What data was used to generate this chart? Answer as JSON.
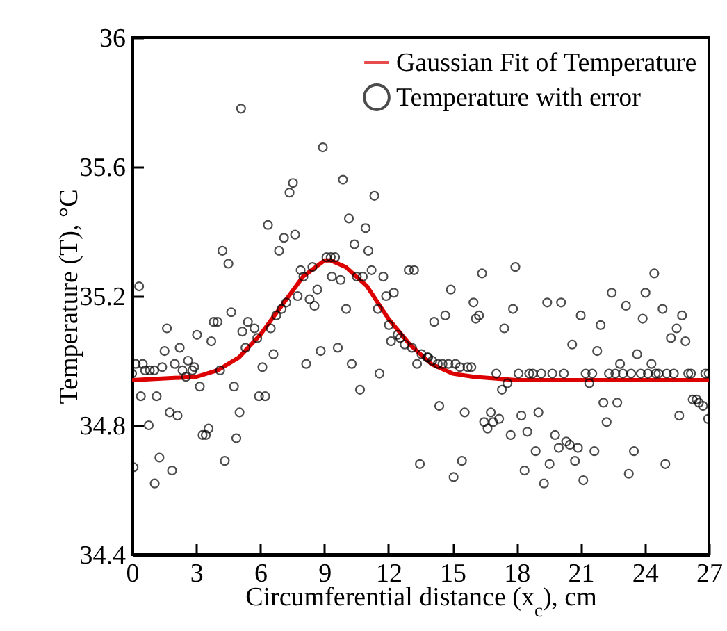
{
  "chart_data": {
    "type": "scatter",
    "xlabel": "Circumferential distance (x$_{c}$), cm",
    "ylabel": "Temperature (T), °C",
    "xlim": [
      0,
      27
    ],
    "xticks": [
      0,
      3,
      6,
      9,
      12,
      15,
      18,
      21,
      24,
      27
    ],
    "ylim": [
      34.4,
      36
    ],
    "yticks": [
      34.4,
      34.8,
      35.2,
      35.6,
      {
        "value": 36,
        "label": "36"
      }
    ],
    "grid": false,
    "legend": "top right",
    "series": [
      {
        "name": "Gaussian Fit of Temperature",
        "type": "line",
        "color": "#dd0000",
        "x": [
          0,
          3,
          4,
          5,
          6,
          7,
          8,
          9,
          9.3,
          10,
          11,
          12,
          13,
          14,
          15,
          16,
          18,
          27
        ],
        "values": [
          34.94,
          34.95,
          34.97,
          35.01,
          35.08,
          35.17,
          35.26,
          35.31,
          35.31,
          35.29,
          35.23,
          35.13,
          35.05,
          34.99,
          34.96,
          34.95,
          34.94,
          34.94
        ]
      },
      {
        "name": "Temperature with error",
        "type": "scatter",
        "marker": "circle",
        "color": "#000000",
        "x": [
          0,
          0.07,
          0.17,
          0.33,
          0.41,
          0.5,
          0.61,
          0.78,
          0.83,
          1.04,
          1.06,
          1.15,
          1.28,
          1.41,
          1.52,
          1.63,
          1.76,
          1.87,
          2.0,
          2.13,
          2.23,
          2.36,
          2.52,
          2.62,
          2.82,
          2.91,
          3.04,
          3.17,
          3.3,
          3.45,
          3.58,
          3.71,
          3.82,
          4.0,
          4.12,
          4.23,
          4.34,
          4.51,
          4.64,
          4.77,
          4.88,
          5.03,
          5.1,
          5.16,
          5.31,
          5.42,
          5.73,
          5.86,
          5.94,
          6.1,
          6.23,
          6.36,
          6.49,
          6.62,
          6.75,
          6.88,
          7.0,
          7.11,
          7.22,
          7.37,
          7.53,
          7.63,
          7.75,
          7.89,
          8.02,
          8.15,
          8.31,
          8.44,
          8.54,
          8.67,
          8.83,
          8.93,
          9.1,
          9.3,
          9.35,
          9.5,
          9.63,
          9.76,
          9.87,
          10.02,
          10.15,
          10.28,
          10.41,
          10.52,
          10.67,
          10.8,
          10.93,
          11.06,
          11.21,
          11.34,
          11.5,
          11.58,
          11.76,
          11.89,
          12.02,
          12.12,
          12.25,
          12.43,
          12.55,
          12.76,
          12.95,
          13.1,
          13.2,
          13.34,
          13.47,
          13.55,
          13.81,
          13.86,
          14.05,
          14.14,
          14.31,
          14.38,
          14.53,
          14.66,
          14.81,
          14.92,
          15.05,
          15.14,
          15.35,
          15.44,
          15.57,
          15.7,
          15.88,
          15.98,
          16.09,
          16.24,
          16.38,
          16.48,
          16.64,
          16.79,
          16.9,
          17.05,
          17.18,
          17.31,
          17.42,
          17.57,
          17.72,
          17.83,
          17.94,
          18.09,
          18.22,
          18.37,
          18.5,
          18.59,
          18.76,
          18.89,
          19.02,
          19.15,
          19.28,
          19.43,
          19.54,
          19.67,
          19.8,
          19.97,
          20.08,
          20.21,
          20.32,
          20.49,
          20.6,
          20.73,
          20.87,
          21.0,
          21.12,
          21.23,
          21.4,
          21.54,
          21.64,
          21.77,
          21.93,
          22.06,
          22.21,
          22.32,
          22.45,
          22.62,
          22.71,
          22.84,
          22.97,
          23.12,
          23.25,
          23.36,
          23.49,
          23.64,
          23.81,
          23.9,
          24.03,
          24.14,
          24.31,
          24.44,
          24.51,
          24.64,
          24.83,
          24.96,
          25.03,
          25.22,
          25.36,
          25.49,
          25.61,
          25.74,
          25.9,
          26.03,
          26.16,
          26.24,
          26.42,
          26.53,
          26.72,
          26.83,
          26.96,
          26.99
        ],
        "values": [
          34.96,
          34.67,
          34.99,
          35.23,
          34.89,
          34.99,
          34.97,
          34.8,
          34.97,
          34.97,
          34.62,
          34.89,
          34.7,
          34.98,
          35.03,
          35.1,
          34.84,
          34.66,
          34.99,
          34.83,
          35.04,
          34.97,
          34.95,
          35.0,
          34.97,
          34.98,
          35.08,
          34.92,
          34.77,
          34.77,
          34.79,
          35.06,
          35.12,
          35.12,
          34.97,
          35.34,
          34.69,
          35.3,
          35.15,
          34.92,
          34.76,
          34.84,
          35.78,
          35.09,
          35.04,
          35.12,
          35.1,
          35.07,
          34.89,
          34.98,
          34.89,
          35.42,
          35.1,
          35.02,
          35.14,
          35.34,
          35.16,
          35.38,
          35.18,
          35.52,
          35.55,
          35.39,
          35.2,
          35.28,
          35.26,
          34.99,
          35.19,
          35.29,
          35.17,
          35.22,
          35.03,
          35.66,
          35.32,
          35.32,
          35.26,
          35.32,
          35.04,
          35.25,
          35.56,
          35.16,
          35.44,
          34.99,
          35.36,
          35.26,
          34.91,
          35.26,
          35.41,
          35.34,
          35.28,
          35.51,
          35.16,
          34.96,
          35.26,
          35.2,
          35.11,
          35.06,
          35.21,
          35.08,
          35.07,
          35.05,
          35.28,
          35.04,
          35.28,
          34.99,
          34.68,
          35.02,
          35.01,
          35.01,
          35.0,
          35.12,
          34.99,
          34.86,
          34.99,
          35.14,
          34.99,
          35.22,
          34.64,
          34.99,
          34.98,
          34.69,
          34.84,
          34.98,
          34.98,
          35.18,
          35.13,
          35.14,
          35.27,
          34.81,
          34.79,
          34.84,
          34.81,
          34.96,
          34.82,
          34.91,
          35.1,
          34.93,
          34.77,
          35.16,
          35.29,
          34.96,
          34.83,
          34.66,
          34.78,
          34.96,
          34.96,
          34.72,
          34.84,
          34.96,
          34.62,
          35.18,
          34.68,
          34.96,
          34.77,
          34.73,
          35.18,
          34.96,
          34.75,
          34.74,
          35.05,
          34.69,
          34.73,
          35.14,
          34.63,
          34.96,
          34.93,
          34.96,
          34.72,
          35.03,
          35.11,
          34.87,
          34.81,
          34.96,
          35.21,
          34.96,
          34.87,
          34.99,
          34.96,
          35.17,
          34.65,
          34.96,
          34.72,
          35.02,
          34.96,
          35.13,
          35.21,
          34.96,
          34.99,
          35.27,
          34.96,
          34.96,
          35.16,
          34.68,
          34.96,
          35.07,
          34.96,
          35.1,
          34.83,
          35.14,
          35.06,
          34.96,
          34.96,
          34.88,
          34.88,
          34.87,
          34.86,
          34.96,
          34.82,
          34.96
        ]
      }
    ]
  }
}
